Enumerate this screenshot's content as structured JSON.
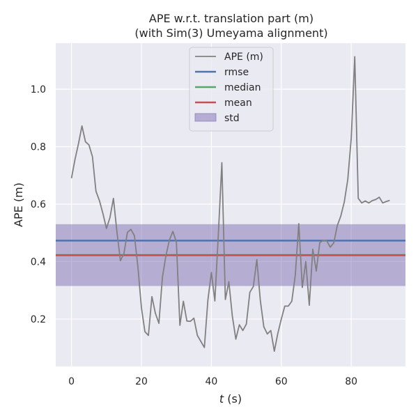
{
  "chart_data": {
    "type": "line",
    "title_line1": "APE w.r.t. translation part (m)",
    "title_line2": "(with Sim(3) Umeyama alignment)",
    "xlabel_var": "t",
    "xlabel_unit": " (s)",
    "ylabel": "APE (m)",
    "xlim": [
      -4.5,
      95.5
    ],
    "ylim": [
      0.035,
      1.16
    ],
    "xticks": [
      0,
      20,
      40,
      60,
      80
    ],
    "yticks": [
      0.2,
      0.4,
      0.6,
      0.8,
      1.0
    ],
    "xtick_labels": [
      "0",
      "20",
      "40",
      "60",
      "80"
    ],
    "ytick_labels": [
      "0.2",
      "0.4",
      "0.6",
      "0.8",
      "1.0"
    ],
    "grid": true,
    "legend_position": "top-center",
    "background_color": "#eaeaf2",
    "series": [
      {
        "name": "APE (m)",
        "kind": "line",
        "color": "#808080",
        "x": [
          0,
          1,
          2,
          3,
          4,
          5,
          6,
          7,
          8,
          9,
          10,
          11,
          12,
          13,
          14,
          15,
          16,
          17,
          18,
          19,
          20,
          21,
          22,
          23,
          24,
          25,
          26,
          27,
          28,
          29,
          30,
          31,
          32,
          33,
          34,
          35,
          36,
          37,
          38,
          39,
          40,
          41,
          42,
          43,
          44,
          45,
          46,
          47,
          48,
          49,
          50,
          51,
          52,
          53,
          54,
          55,
          56,
          57,
          58,
          59,
          60,
          61,
          62,
          63,
          64,
          65,
          66,
          67,
          68,
          69,
          70,
          71,
          72,
          73,
          74,
          75,
          76,
          77,
          78,
          79,
          80,
          81,
          82,
          83,
          84,
          85,
          86,
          87,
          88,
          89,
          90,
          91
        ],
        "y": [
          0.69,
          0.755,
          0.81,
          0.872,
          0.817,
          0.806,
          0.765,
          0.645,
          0.612,
          0.567,
          0.515,
          0.553,
          0.62,
          0.503,
          0.403,
          0.428,
          0.502,
          0.512,
          0.49,
          0.381,
          0.24,
          0.156,
          0.143,
          0.278,
          0.22,
          0.185,
          0.345,
          0.42,
          0.475,
          0.505,
          0.468,
          0.178,
          0.262,
          0.193,
          0.192,
          0.203,
          0.143,
          0.122,
          0.101,
          0.265,
          0.362,
          0.263,
          0.496,
          0.744,
          0.268,
          0.33,
          0.21,
          0.13,
          0.18,
          0.16,
          0.182,
          0.293,
          0.313,
          0.407,
          0.265,
          0.173,
          0.148,
          0.16,
          0.088,
          0.15,
          0.2,
          0.245,
          0.245,
          0.262,
          0.353,
          0.532,
          0.31,
          0.4,
          0.248,
          0.443,
          0.367,
          0.466,
          0.474,
          0.472,
          0.45,
          0.465,
          0.525,
          0.558,
          0.607,
          0.685,
          0.83,
          1.113,
          0.62,
          0.604,
          0.611,
          0.604,
          0.612,
          0.616,
          0.624,
          0.604,
          0.609,
          0.613
        ]
      },
      {
        "name": "rmse",
        "kind": "hline",
        "color": "#4c72b0",
        "value": 0.473
      },
      {
        "name": "median",
        "kind": "hline",
        "color": "#55a868",
        "value": 0.423
      },
      {
        "name": "mean",
        "kind": "hline",
        "color": "#c44e52",
        "value": 0.422
      },
      {
        "name": "std",
        "kind": "band",
        "color": "#8172b2",
        "range": [
          0.315,
          0.53
        ]
      }
    ]
  }
}
